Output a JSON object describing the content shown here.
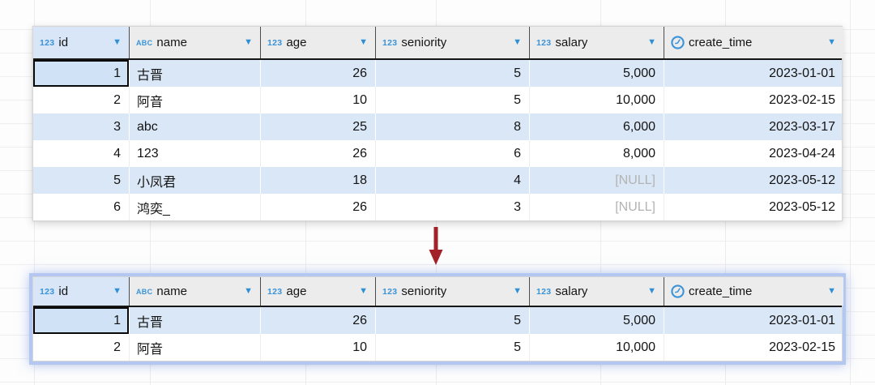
{
  "grid": {
    "columns": [
      {
        "label": "id",
        "type_badge": "123",
        "align": "right"
      },
      {
        "label": "name",
        "type_badge": "ABC",
        "align": "left"
      },
      {
        "label": "age",
        "type_badge": "123",
        "align": "right"
      },
      {
        "label": "seniority",
        "type_badge": "123",
        "align": "right"
      },
      {
        "label": "salary",
        "type_badge": "123",
        "align": "right"
      },
      {
        "label": "create_time",
        "type_badge": "clock",
        "align": "right"
      }
    ],
    "filter_caret": "▼",
    "null_text": "[NULL]",
    "selected_column_index": 0
  },
  "source_table": {
    "rows": [
      [
        "1",
        "古晋",
        "26",
        "5",
        "5,000",
        "2023-01-01"
      ],
      [
        "2",
        "阿音",
        "10",
        "5",
        "10,000",
        "2023-02-15"
      ],
      [
        "3",
        "abc",
        "25",
        "8",
        "6,000",
        "2023-03-17"
      ],
      [
        "4",
        "123",
        "26",
        "6",
        "8,000",
        "2023-04-24"
      ],
      [
        "5",
        "小凤君",
        "18",
        "4",
        "[NULL]",
        "2023-05-12"
      ],
      [
        "6",
        "鸿奕_",
        "26",
        "3",
        "[NULL]",
        "2023-05-12"
      ]
    ],
    "selected_cell": {
      "row": 0,
      "col": 0
    }
  },
  "result_table": {
    "rows": [
      [
        "1",
        "古晋",
        "26",
        "5",
        "5,000",
        "2023-01-01"
      ],
      [
        "2",
        "阿音",
        "10",
        "5",
        "10,000",
        "2023-02-15"
      ]
    ],
    "selected_cell": {
      "row": 0,
      "col": 0
    }
  },
  "colors": {
    "stripe_blue": "#dae7f6",
    "header_gray": "#ececec",
    "header_selected_blue": "#d8e6f8",
    "type_icon_blue": "#3a93d8",
    "caret_blue": "#2e8fd6",
    "arrow_red": "#a32128",
    "focus_glow_blue": "#b4c7f0",
    "null_gray": "#b3b3b3"
  }
}
